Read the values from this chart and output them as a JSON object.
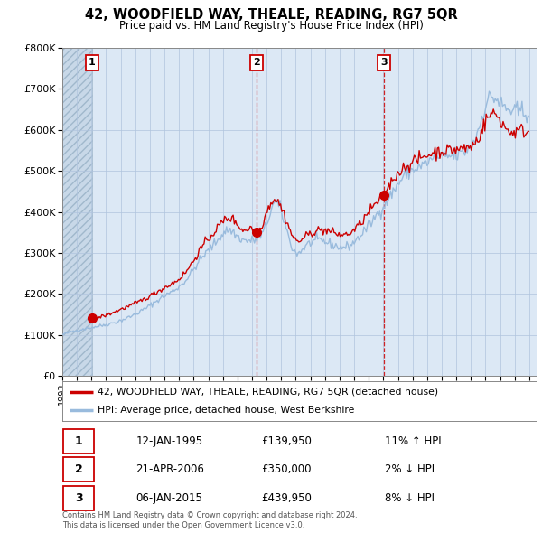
{
  "title": "42, WOODFIELD WAY, THEALE, READING, RG7 5QR",
  "subtitle": "Price paid vs. HM Land Registry's House Price Index (HPI)",
  "xlim_start": 1993.0,
  "xlim_end": 2025.5,
  "ylim": [
    0,
    800000
  ],
  "yticks": [
    0,
    100000,
    200000,
    300000,
    400000,
    500000,
    600000,
    700000,
    800000
  ],
  "ytick_labels": [
    "£0",
    "£100K",
    "£200K",
    "£300K",
    "£400K",
    "£500K",
    "£600K",
    "£700K",
    "£800K"
  ],
  "sale_dates_decimal": [
    1995.04,
    2006.31,
    2015.02
  ],
  "sale_prices": [
    139950,
    350000,
    439950
  ],
  "sale_labels": [
    "1",
    "2",
    "3"
  ],
  "hpi_line_color": "#99bbdd",
  "price_line_color": "#cc0000",
  "dot_color": "#cc0000",
  "vline_color": "#cc0000",
  "bg_color": "#ffffff",
  "plot_bg_color": "#dce8f5",
  "grid_color": "#b0c4de",
  "legend_label_price": "42, WOODFIELD WAY, THEALE, READING, RG7 5QR (detached house)",
  "legend_label_hpi": "HPI: Average price, detached house, West Berkshire",
  "table_data": [
    [
      "1",
      "12-JAN-1995",
      "£139,950",
      "11% ↑ HPI"
    ],
    [
      "2",
      "21-APR-2006",
      "£350,000",
      "2% ↓ HPI"
    ],
    [
      "3",
      "06-JAN-2015",
      "£439,950",
      "8% ↓ HPI"
    ]
  ],
  "footnote1": "Contains HM Land Registry data © Crown copyright and database right 2024.",
  "footnote2": "This data is licensed under the Open Government Licence v3.0."
}
